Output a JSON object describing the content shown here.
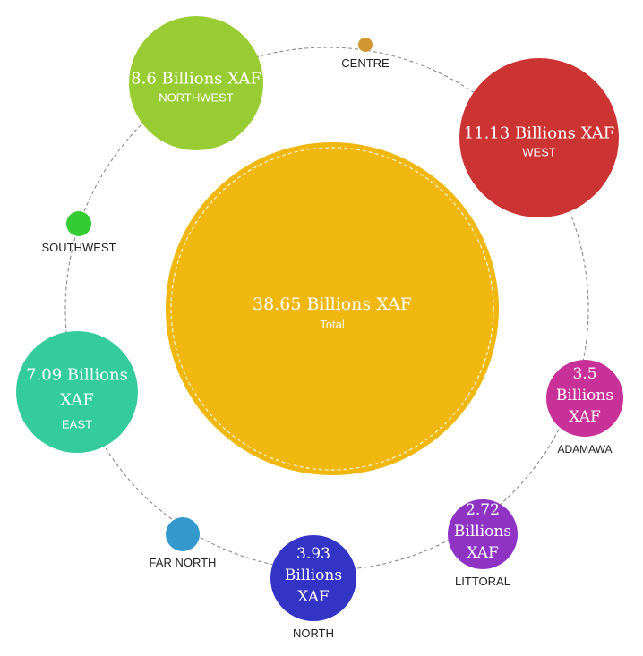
{
  "chart_data": {
    "type": "bubble",
    "unit": "Billions XAF",
    "total": {
      "name": "Total",
      "value": 38.65,
      "color": "#f0b70e"
    },
    "regions": [
      {
        "name": "CENTRE",
        "value": null,
        "color": "#cf9631"
      },
      {
        "name": "WEST",
        "value": 11.13,
        "color": "#cc3333"
      },
      {
        "name": "ADAMAWA",
        "value": 3.5,
        "color": "#c83298"
      },
      {
        "name": "LITTORAL",
        "value": 2.72,
        "color": "#8f33c4"
      },
      {
        "name": "NORTH",
        "value": 3.93,
        "color": "#3333c5"
      },
      {
        "name": "FAR NORTH",
        "value": null,
        "color": "#3399cc"
      },
      {
        "name": "EAST",
        "value": 7.09,
        "color": "#33cc9a"
      },
      {
        "name": "SOUTHWEST",
        "value": null,
        "color": "#33cc33"
      },
      {
        "name": "NORTHWEST",
        "value": 8.6,
        "color": "#99cc33"
      }
    ]
  }
}
